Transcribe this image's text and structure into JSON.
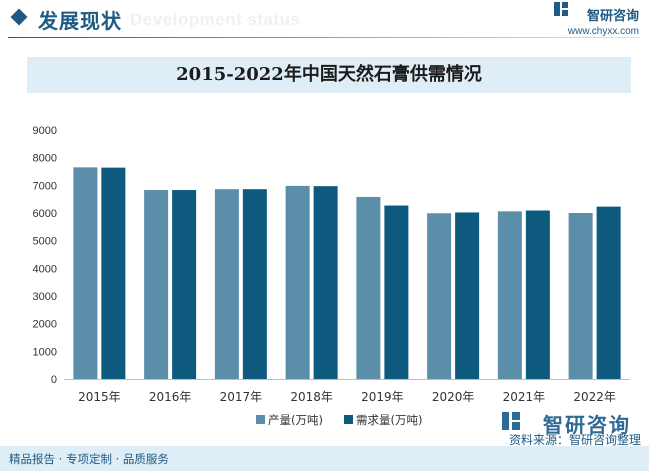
{
  "header": {
    "title": "发展现状",
    "title_en": "Development status",
    "brand_name": "智研咨询",
    "brand_url": "www.chyxx.com"
  },
  "footer": {
    "left_text": "精品报告 · 专项定制 · 品质服务",
    "logo_text": "智研咨询",
    "source": "资料来源：智研咨询整理"
  },
  "chart_data": {
    "type": "bar",
    "title": "2015-2022年中国天然石膏供需情况",
    "categories": [
      "2015年",
      "2016年",
      "2017年",
      "2018年",
      "2019年",
      "2020年",
      "2021年",
      "2022年"
    ],
    "series": [
      {
        "name": "产量(万吨)",
        "values": [
          7650,
          6830,
          6860,
          6980,
          6580,
          5990,
          6060,
          6000
        ],
        "color": "#5b8ea8"
      },
      {
        "name": "需求量(万吨)",
        "values": [
          7640,
          6830,
          6860,
          6970,
          6270,
          6020,
          6090,
          6230
        ],
        "color": "#0e5a7e"
      }
    ],
    "yticks": [
      0,
      1000,
      2000,
      3000,
      4000,
      5000,
      6000,
      7000,
      8000,
      9000
    ],
    "ylim": [
      0,
      9000
    ],
    "xlabel": "",
    "ylabel": "",
    "grid": false,
    "legend": "bottom-center"
  }
}
